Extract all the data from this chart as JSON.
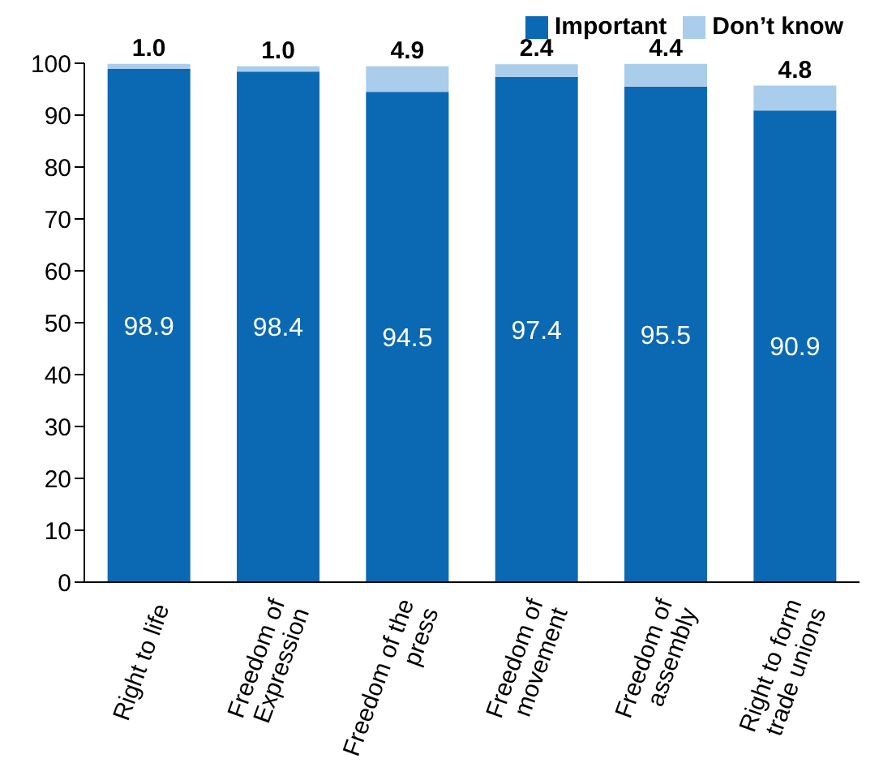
{
  "chart_data": {
    "type": "bar",
    "stacked": true,
    "categories": [
      "Right to life",
      "Freedom of\nExpression",
      "Freedom of the\npress",
      "Freedom of\nmovement",
      "Freedom of\nassembly",
      "Right to form\ntrade unions"
    ],
    "series": [
      {
        "name": "Important",
        "color": "#0b69b3",
        "values": [
          98.9,
          98.4,
          94.5,
          97.4,
          95.5,
          90.9
        ],
        "value_labels": [
          "98.9",
          "98.4",
          "94.5",
          "97.4",
          "95.5",
          "90.9"
        ]
      },
      {
        "name": "Don’t know",
        "color": "#a9cdea",
        "values": [
          1.0,
          1.0,
          4.9,
          2.4,
          4.4,
          4.8
        ],
        "value_labels": [
          "1.0",
          "1.0",
          "4.9",
          "2.4",
          "4.4",
          "4.8"
        ]
      }
    ],
    "ylim": [
      0,
      100
    ],
    "yticks": [
      0,
      10,
      20,
      30,
      40,
      50,
      60,
      70,
      80,
      90,
      100
    ],
    "legend": "top right"
  }
}
